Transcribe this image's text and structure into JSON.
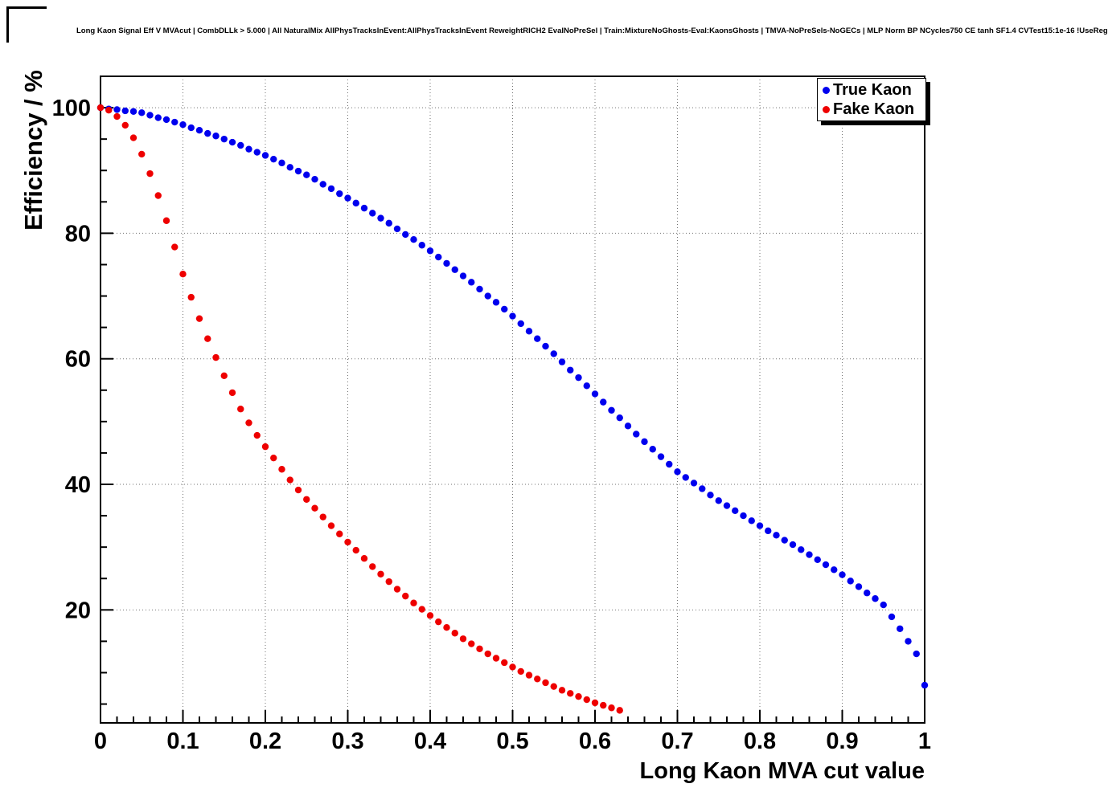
{
  "chart_data": {
    "type": "scatter",
    "title": "Long Kaon Signal Eff V MVAcut | CombDLLk > 5.000 | All NaturalMix AllPhysTracksInEvent:AllPhysTracksInEvent ReweightRICH2 EvalNoPreSel | Train:MixtureNoGhosts-Eval:KaonsGhosts | TMVA-NoPreSels-NoGECs | MLP Norm BP NCycles750 CE tanh SF1.4 CVTest15:1e-16 !UseReg",
    "xlabel": "Long Kaon MVA cut value",
    "ylabel": "Efficiency / %",
    "xlim": [
      0,
      1
    ],
    "ylim": [
      2,
      105
    ],
    "x_major_ticks": [
      0,
      0.1,
      0.2,
      0.3,
      0.4,
      0.5,
      0.6,
      0.7,
      0.8,
      0.9,
      1
    ],
    "x_tick_labels": [
      "0",
      "0.1",
      "0.2",
      "0.3",
      "0.4",
      "0.5",
      "0.6",
      "0.7",
      "0.8",
      "0.9",
      "1"
    ],
    "y_major_ticks": [
      20,
      40,
      60,
      80,
      100
    ],
    "y_tick_labels": [
      "20",
      "40",
      "60",
      "80",
      "100"
    ],
    "x_minor_step": 0.02,
    "y_minor_step": 5,
    "grid": "dotted",
    "grid_color": "#000000",
    "legend_position": "top-right",
    "series": [
      {
        "name": "True Kaon",
        "color": "#0000ee",
        "marker": "filled-circle",
        "x": [
          0,
          0.01,
          0.02,
          0.03,
          0.04,
          0.05,
          0.06,
          0.07,
          0.08,
          0.09,
          0.1,
          0.11,
          0.12,
          0.13,
          0.14,
          0.15,
          0.16,
          0.17,
          0.18,
          0.19,
          0.2,
          0.21,
          0.22,
          0.23,
          0.24,
          0.25,
          0.26,
          0.27,
          0.28,
          0.29,
          0.3,
          0.31,
          0.32,
          0.33,
          0.34,
          0.35,
          0.36,
          0.37,
          0.38,
          0.39,
          0.4,
          0.41,
          0.42,
          0.43,
          0.44,
          0.45,
          0.46,
          0.47,
          0.48,
          0.49,
          0.5,
          0.51,
          0.52,
          0.53,
          0.54,
          0.55,
          0.56,
          0.57,
          0.58,
          0.59,
          0.6,
          0.61,
          0.62,
          0.63,
          0.64,
          0.65,
          0.66,
          0.67,
          0.68,
          0.69,
          0.7,
          0.71,
          0.72,
          0.73,
          0.74,
          0.75,
          0.76,
          0.77,
          0.78,
          0.79,
          0.8,
          0.81,
          0.82,
          0.83,
          0.84,
          0.85,
          0.86,
          0.87,
          0.88,
          0.89,
          0.9,
          0.91,
          0.92,
          0.93,
          0.94,
          0.95,
          0.96,
          0.97,
          0.98,
          0.99,
          1.0
        ],
        "y": [
          100.0,
          99.8,
          99.7,
          99.5,
          99.4,
          99.2,
          98.8,
          98.4,
          98.1,
          97.7,
          97.3,
          96.8,
          96.4,
          95.9,
          95.5,
          95.0,
          94.5,
          94.0,
          93.4,
          92.9,
          92.4,
          91.8,
          91.2,
          90.5,
          89.9,
          89.3,
          88.6,
          87.8,
          87.1,
          86.3,
          85.6,
          84.8,
          84.0,
          83.2,
          82.4,
          81.6,
          80.7,
          79.8,
          79.0,
          78.1,
          77.2,
          76.2,
          75.2,
          74.2,
          73.2,
          72.2,
          71.1,
          70.0,
          69.0,
          67.9,
          66.8,
          65.6,
          64.4,
          63.2,
          62.0,
          60.8,
          59.5,
          58.2,
          57.0,
          55.7,
          54.4,
          53.1,
          51.8,
          50.6,
          49.3,
          48.0,
          46.8,
          45.6,
          44.4,
          43.2,
          42.0,
          41.1,
          40.2,
          39.3,
          38.3,
          37.4,
          36.6,
          35.8,
          35.0,
          34.2,
          33.4,
          32.6,
          31.9,
          31.1,
          30.4,
          29.6,
          28.8,
          28.0,
          27.2,
          26.4,
          25.6,
          24.6,
          23.7,
          22.7,
          21.8,
          20.8,
          18.9,
          17.0,
          15.0,
          13.0,
          8.0
        ]
      },
      {
        "name": "Fake Kaon",
        "color": "#ee0000",
        "marker": "filled-circle",
        "x": [
          0,
          0.01,
          0.02,
          0.03,
          0.04,
          0.05,
          0.06,
          0.07,
          0.08,
          0.09,
          0.1,
          0.11,
          0.12,
          0.13,
          0.14,
          0.15,
          0.16,
          0.17,
          0.18,
          0.19,
          0.2,
          0.21,
          0.22,
          0.23,
          0.24,
          0.25,
          0.26,
          0.27,
          0.28,
          0.29,
          0.3,
          0.31,
          0.32,
          0.33,
          0.34,
          0.35,
          0.36,
          0.37,
          0.38,
          0.39,
          0.4,
          0.41,
          0.42,
          0.43,
          0.44,
          0.45,
          0.46,
          0.47,
          0.48,
          0.49,
          0.5,
          0.51,
          0.52,
          0.53,
          0.54,
          0.55,
          0.56,
          0.57,
          0.58,
          0.59,
          0.6,
          0.61,
          0.62,
          0.63
        ],
        "y": [
          100.0,
          99.6,
          98.6,
          97.2,
          95.2,
          92.6,
          89.5,
          86.0,
          82.0,
          77.8,
          73.5,
          69.8,
          66.4,
          63.2,
          60.2,
          57.3,
          54.6,
          52.0,
          49.8,
          47.8,
          46.0,
          44.2,
          42.4,
          40.7,
          39.1,
          37.6,
          36.2,
          34.8,
          33.4,
          32.1,
          30.8,
          29.5,
          28.2,
          26.9,
          25.7,
          24.5,
          23.3,
          22.2,
          21.1,
          20.1,
          19.1,
          18.1,
          17.2,
          16.3,
          15.4,
          14.6,
          13.8,
          13.0,
          12.3,
          11.6,
          10.9,
          10.2,
          9.6,
          9.0,
          8.4,
          7.8,
          7.2,
          6.7,
          6.2,
          5.7,
          5.2,
          4.8,
          4.4,
          4.0
        ]
      }
    ]
  }
}
